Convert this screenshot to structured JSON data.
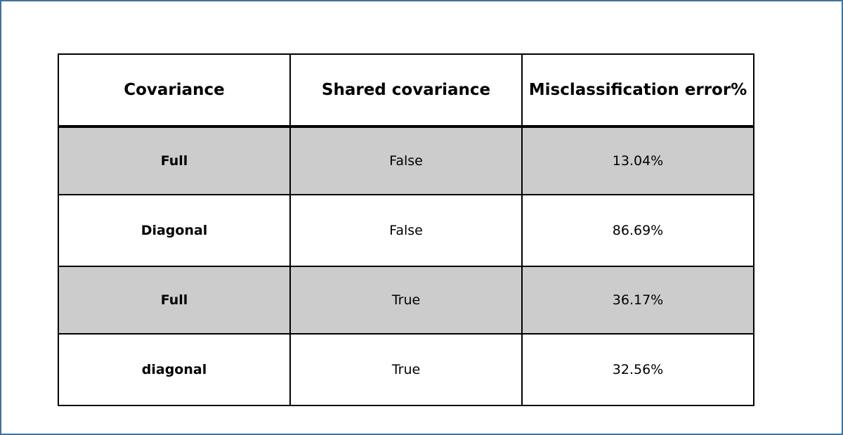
{
  "colors": {
    "frame_border": "#41719c",
    "shaded_row": "#cccccc",
    "grid": "#000000"
  },
  "table": {
    "headers": [
      "Covariance",
      "Shared covariance",
      "Misclassification error%"
    ],
    "rows": [
      [
        "Full",
        "False",
        "13.04%"
      ],
      [
        "Diagonal",
        "False",
        "86.69%"
      ],
      [
        "Full",
        "True",
        "36.17%"
      ],
      [
        "diagonal",
        "True",
        "32.56%"
      ]
    ]
  }
}
